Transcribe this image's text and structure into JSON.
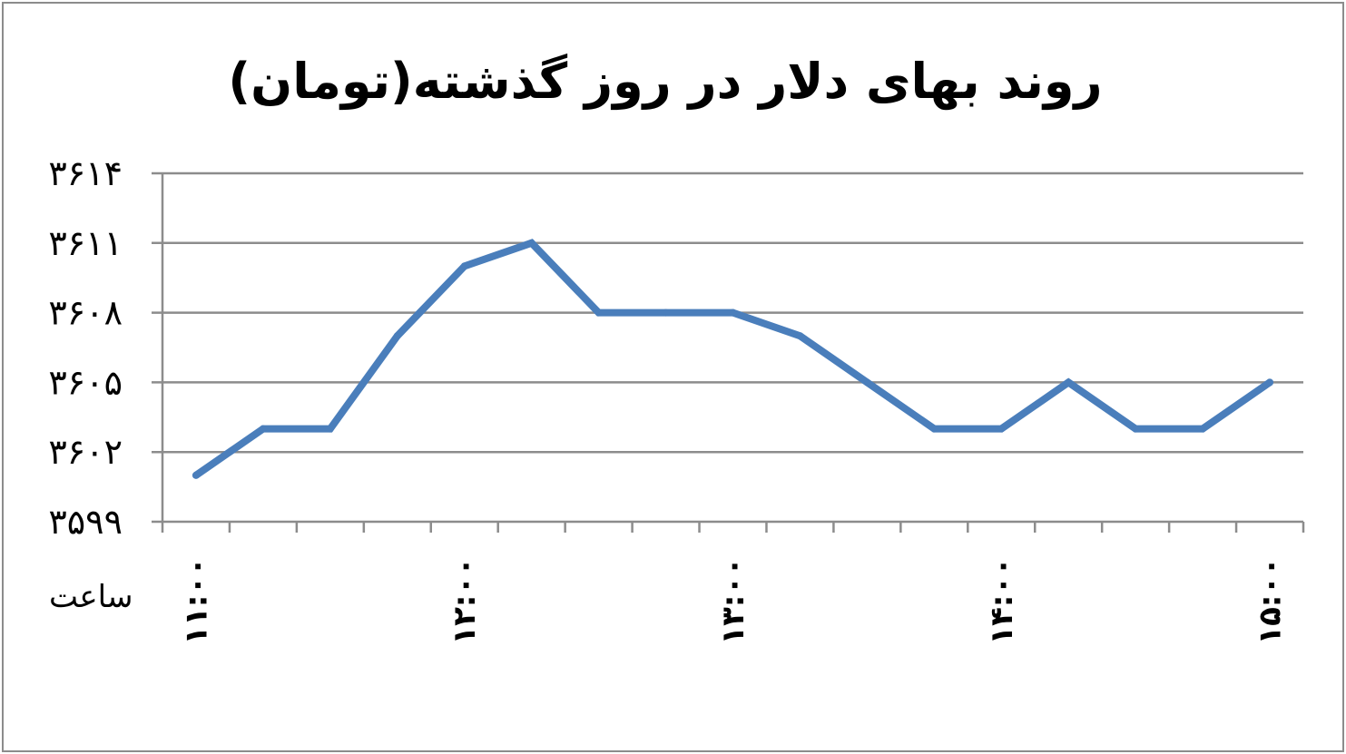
{
  "chart_data": {
    "type": "line",
    "title": "روند بهای دلار در روز گذشته(تومان)",
    "xlabel": "ساعت",
    "ylabel": "",
    "ylim": [
      3599,
      3614
    ],
    "yticks": [
      "۳۵۹۹",
      "۳۶۰۲",
      "۳۶۰۵",
      "۳۶۰۸",
      "۳۶۱۱",
      "۳۶۱۴"
    ],
    "ytick_values": [
      3599,
      3602,
      3605,
      3608,
      3611,
      3614
    ],
    "grid": true,
    "legend": "none",
    "color": "#4a7ebb",
    "xtick_labels": [
      {
        "index": 0,
        "label": "۱۱:۰۰"
      },
      {
        "index": 4,
        "label": "۱۲:۰۰"
      },
      {
        "index": 8,
        "label": "۱۳:۰۰"
      },
      {
        "index": 12,
        "label": "۱۴:۰۰"
      },
      {
        "index": 16,
        "label": "۱۵:۰۰"
      }
    ],
    "series": [
      {
        "values": [
          3601,
          3603,
          3603,
          3607,
          3610,
          3611,
          3608,
          3608,
          3608,
          3607,
          3605,
          3603,
          3603,
          3605,
          3603,
          3603,
          3605
        ]
      }
    ]
  }
}
